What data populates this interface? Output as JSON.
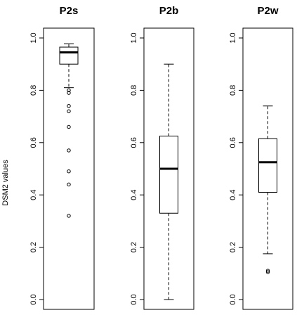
{
  "chart_data": [
    {
      "type": "boxplot",
      "title": "P2s",
      "ylabel": "DSM2 values",
      "ylim": [
        0.0,
        1.0
      ],
      "yticks": [
        "0.0",
        "0.2",
        "0.4",
        "0.6",
        "0.8",
        "1.0"
      ],
      "box": {
        "lower_whisker": 0.81,
        "q1": 0.9,
        "median": 0.945,
        "q3": 0.965,
        "upper_whisker": 0.978
      },
      "outliers": [
        0.8,
        0.79,
        0.74,
        0.72,
        0.66,
        0.57,
        0.49,
        0.44,
        0.32
      ]
    },
    {
      "type": "boxplot",
      "title": "P2b",
      "ylabel": "",
      "ylim": [
        0.0,
        1.0
      ],
      "yticks": [
        "0.0",
        "0.2",
        "0.4",
        "0.6",
        "0.8",
        "1.0"
      ],
      "box": {
        "lower_whisker": 0.0,
        "q1": 0.33,
        "median": 0.5,
        "q3": 0.625,
        "upper_whisker": 0.9
      },
      "outliers": []
    },
    {
      "type": "boxplot",
      "title": "P2w",
      "ylabel": "",
      "ylim": [
        0.0,
        1.0
      ],
      "yticks": [
        "0.0",
        "0.2",
        "0.4",
        "0.6",
        "0.8",
        "1.0"
      ],
      "box": {
        "lower_whisker": 0.175,
        "q1": 0.41,
        "median": 0.525,
        "q3": 0.615,
        "upper_whisker": 0.74
      },
      "outliers": [
        0.11,
        0.105
      ]
    }
  ]
}
